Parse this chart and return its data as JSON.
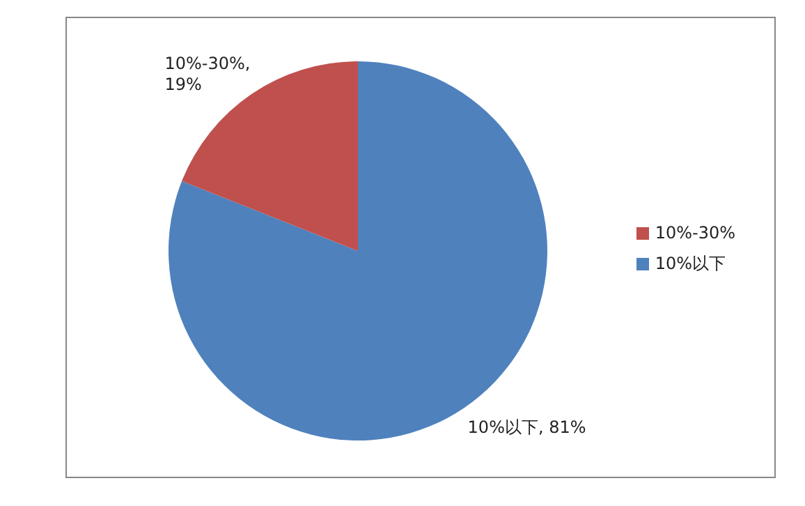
{
  "chart_data": {
    "type": "pie",
    "categories": [
      "10%以下",
      "10%-30%"
    ],
    "values": [
      81,
      19
    ],
    "colors": [
      "#4f81bd",
      "#c0504d"
    ],
    "value_labels": [
      "10%以下, 81%",
      "10%-30%, 19%"
    ],
    "legend": "right"
  }
}
